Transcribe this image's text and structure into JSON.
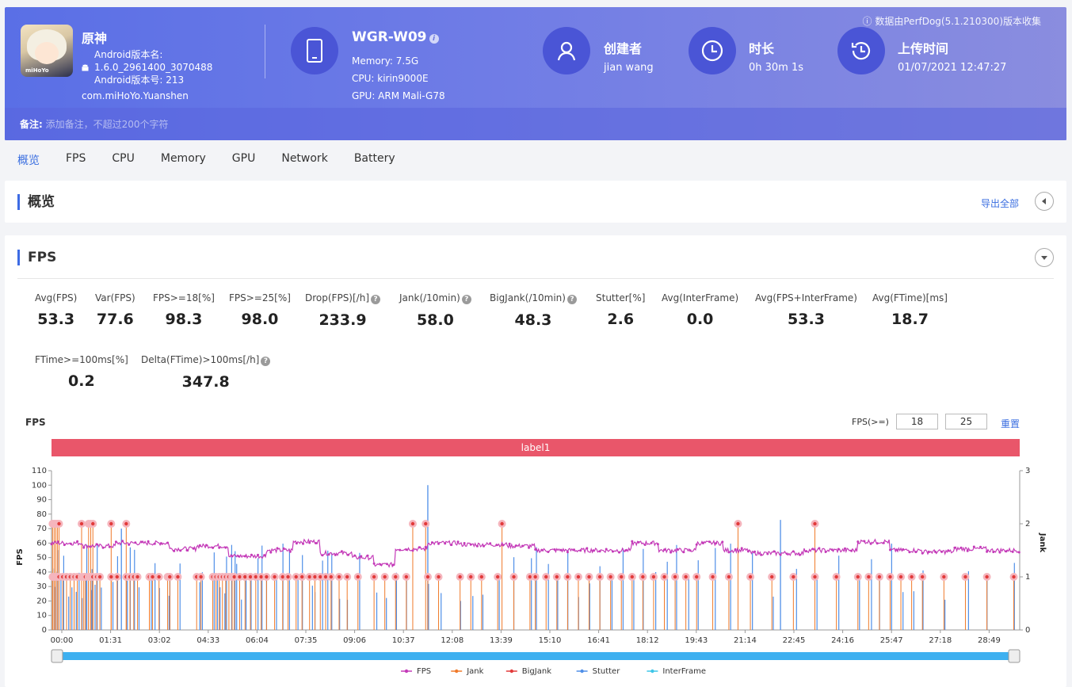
{
  "app": {
    "name": "原神",
    "version_name_label": "Android版本名:",
    "version_name": "1.6.0_2961400_3070488",
    "version_code_label": "Android版本号: 213",
    "package": "com.miHoYo.Yuanshen",
    "icon_text": "miHoYo"
  },
  "device": {
    "model": "WGR-W09",
    "memory": "Memory: 7.5G",
    "cpu": "CPU: kirin9000E",
    "gpu": "GPU: ARM Mali-G78"
  },
  "creator": {
    "title": "创建者",
    "value": "jian wang"
  },
  "duration": {
    "title": "时长",
    "value": "0h 30m 1s"
  },
  "upload": {
    "title": "上传时间",
    "value": "01/07/2021 12:47:27"
  },
  "source_note": "数据由PerfDog(5.1.210300)版本收集",
  "note": {
    "label": "备注:",
    "placeholder": "添加备注，不超过200个字符"
  },
  "tabs": [
    "概览",
    "FPS",
    "CPU",
    "Memory",
    "GPU",
    "Network",
    "Battery"
  ],
  "overview": {
    "title": "概览",
    "export": "导出全部"
  },
  "fps_section": {
    "title": "FPS",
    "metrics": [
      {
        "key": "Avg(FPS)",
        "value": "53.3",
        "help": false
      },
      {
        "key": "Var(FPS)",
        "value": "77.6",
        "help": false
      },
      {
        "key": "FPS>=18[%]",
        "value": "98.3",
        "help": false
      },
      {
        "key": "FPS>=25[%]",
        "value": "98.0",
        "help": false
      },
      {
        "key": "Drop(FPS)[/h]",
        "value": "233.9",
        "help": true
      },
      {
        "key": "Jank(/10min)",
        "value": "58.0",
        "help": true
      },
      {
        "key": "BigJank(/10min)",
        "value": "48.3",
        "help": true
      },
      {
        "key": "Stutter[%]",
        "value": "2.6",
        "help": false
      },
      {
        "key": "Avg(InterFrame)",
        "value": "0.0",
        "help": false
      },
      {
        "key": "Avg(FPS+InterFrame)",
        "value": "53.3",
        "help": false
      },
      {
        "key": "Avg(FTime)[ms]",
        "value": "18.7",
        "help": false
      },
      {
        "key": "FTime>=100ms[%]",
        "value": "0.2",
        "help": false
      },
      {
        "key": "Delta(FTime)>100ms[/h]",
        "value": "347.8",
        "help": true
      }
    ],
    "chart_title": "FPS",
    "fps_filter_label": "FPS(>=)",
    "fps_filter_1": "18",
    "fps_filter_2": "25",
    "reset": "重置",
    "label_bar": "label1"
  },
  "chart_data": {
    "type": "line",
    "x_ticks": [
      "00:00",
      "01:31",
      "03:02",
      "04:33",
      "06:04",
      "07:35",
      "09:06",
      "10:37",
      "12:08",
      "13:39",
      "15:10",
      "16:41",
      "18:12",
      "19:43",
      "21:14",
      "22:45",
      "24:16",
      "25:47",
      "27:18",
      "28:49"
    ],
    "y_left_label": "FPS",
    "y_left_ticks": [
      0,
      10,
      20,
      30,
      40,
      50,
      60,
      70,
      80,
      90,
      100,
      110
    ],
    "ylim_left": [
      0,
      110
    ],
    "y_right_label": "Jank",
    "y_right_ticks": [
      0,
      1,
      2,
      3
    ],
    "ylim_right": [
      0,
      3
    ],
    "duration_seconds": 1801,
    "series": [
      {
        "name": "FPS",
        "color": "#c43ab8",
        "segments": [
          [
            0,
            60
          ],
          [
            60,
            58
          ],
          [
            120,
            60
          ],
          [
            180,
            60
          ],
          [
            220,
            56
          ],
          [
            270,
            58
          ],
          [
            330,
            51
          ],
          [
            400,
            55
          ],
          [
            450,
            61
          ],
          [
            500,
            53
          ],
          [
            560,
            50
          ],
          [
            600,
            45
          ],
          [
            640,
            56
          ],
          [
            700,
            60
          ],
          [
            760,
            59
          ],
          [
            850,
            58
          ],
          [
            900,
            55
          ],
          [
            960,
            55
          ],
          [
            1020,
            55
          ],
          [
            1080,
            60
          ],
          [
            1130,
            55
          ],
          [
            1200,
            60
          ],
          [
            1250,
            55
          ],
          [
            1300,
            53
          ],
          [
            1400,
            55
          ],
          [
            1500,
            61
          ],
          [
            1560,
            55
          ],
          [
            1620,
            54
          ],
          [
            1680,
            56
          ],
          [
            1740,
            55
          ],
          [
            1801,
            52
          ]
        ]
      },
      {
        "name": "Jank",
        "color": "#f07a2a"
      },
      {
        "name": "BigJank",
        "color": "#e23a3a"
      },
      {
        "name": "Stutter",
        "color": "#4f8fe8"
      },
      {
        "name": "InterFrame",
        "color": "#3ec6e8"
      }
    ],
    "bigjank_times": [
      2,
      5,
      8,
      11,
      14,
      56,
      69,
      73,
      77,
      111,
      139
    ],
    "jank_times": [
      2,
      5,
      8,
      11,
      14,
      21,
      28,
      35,
      42,
      48,
      56,
      60,
      63,
      69,
      73,
      77,
      84,
      90,
      111,
      122,
      139,
      146,
      153,
      160,
      182,
      188,
      200,
      216,
      220,
      235,
      270,
      278,
      300,
      306,
      312,
      318,
      324,
      330,
      336,
      340,
      350,
      360,
      370,
      380,
      390,
      400,
      415,
      430,
      440,
      455,
      466,
      480,
      490,
      500,
      510,
      520,
      535,
      550,
      570,
      600,
      620,
      640,
      660,
      700,
      720,
      760,
      780,
      800,
      830,
      860,
      890,
      900,
      920,
      940,
      960,
      980,
      1000,
      1020,
      1040,
      1060,
      1080,
      1100,
      1120,
      1140,
      1160,
      1180,
      1200,
      1230,
      1260,
      1300,
      1340,
      1380,
      1420,
      1460,
      1500,
      1520,
      1540,
      1560,
      1580,
      1600,
      1620,
      1660,
      1700,
      1740,
      1790
    ],
    "legend": [
      "FPS",
      "Jank",
      "BigJank",
      "Stutter",
      "InterFrame"
    ]
  }
}
